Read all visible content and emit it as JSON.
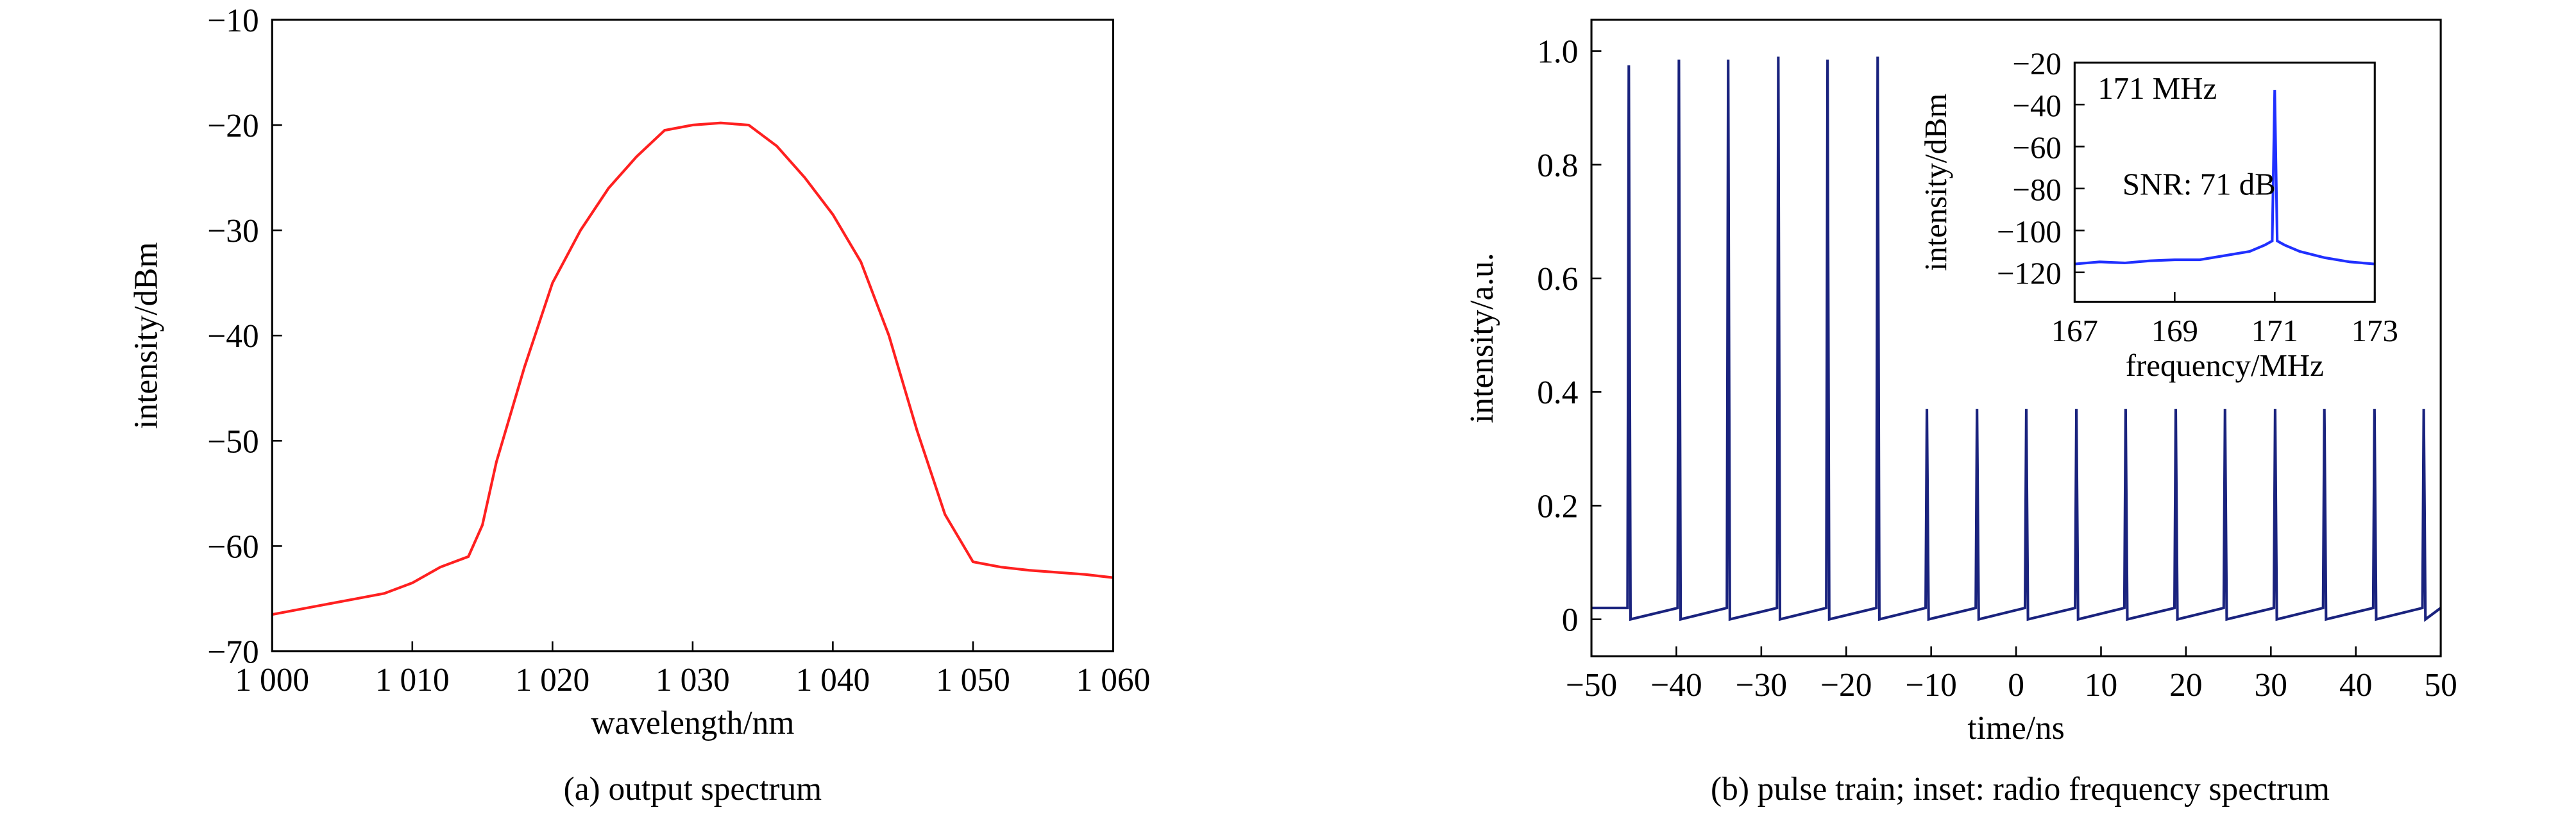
{
  "chart_data": [
    {
      "type": "line",
      "caption": "(a) output spectrum",
      "xlabel": "wavelength/nm",
      "ylabel": "intensity/dBm",
      "color": "#ff2020",
      "x": [
        1000,
        1002,
        1004,
        1006,
        1008,
        1010,
        1012,
        1014,
        1015,
        1016,
        1018,
        1020,
        1022,
        1024,
        1026,
        1028,
        1030,
        1032,
        1034,
        1036,
        1038,
        1040,
        1042,
        1044,
        1046,
        1048,
        1050,
        1052,
        1054,
        1056,
        1058,
        1060
      ],
      "values": [
        -66.5,
        -66,
        -65.5,
        -65,
        -64.5,
        -63.5,
        -62,
        -61,
        -58,
        -52,
        -43,
        -35,
        -30,
        -26,
        -23,
        -20.5,
        -20,
        -19.8,
        -20,
        -22,
        -25,
        -28.5,
        -33,
        -40,
        -49,
        -57,
        -61.5,
        -62,
        -62.3,
        -62.5,
        -62.7,
        -63
      ],
      "xlim": [
        1000,
        1060
      ],
      "xticks": [
        {
          "value": 1000,
          "label": "1 000"
        },
        {
          "value": 1010,
          "label": "1 010"
        },
        {
          "value": 1020,
          "label": "1 020"
        },
        {
          "value": 1030,
          "label": "1 030"
        },
        {
          "value": 1040,
          "label": "1 040"
        },
        {
          "value": 1050,
          "label": "1 050"
        },
        {
          "value": 1060,
          "label": "1 060"
        }
      ],
      "ylim": [
        -70,
        -10
      ],
      "yticks": [
        {
          "value": -70,
          "label": "−70"
        },
        {
          "value": -60,
          "label": "−60"
        },
        {
          "value": -50,
          "label": "−50"
        },
        {
          "value": -40,
          "label": "−40"
        },
        {
          "value": -30,
          "label": "−30"
        },
        {
          "value": -20,
          "label": "−20"
        },
        {
          "value": -10,
          "label": "−10"
        }
      ]
    },
    {
      "type": "line",
      "caption": "(b) pulse train; inset: radio frequency spectrum",
      "xlabel": "time/ns",
      "ylabel": "intensity/a.u.",
      "color": "#1a237e",
      "x": [
        -50,
        -45.75,
        -45.6,
        -45.4,
        -39.85,
        -39.7,
        -39.5,
        -34.05,
        -33.9,
        -33.7,
        -28.15,
        -28.0,
        -27.8,
        -22.35,
        -22.2,
        -22.0,
        -16.45,
        -16.3,
        -16.1,
        -10.65,
        -10.5,
        -10.3,
        -4.75,
        -4.6,
        -4.4,
        1.05,
        1.2,
        1.4,
        6.95,
        7.1,
        7.3,
        12.75,
        12.9,
        13.1,
        18.65,
        18.8,
        19.0,
        24.45,
        24.6,
        24.8,
        30.35,
        30.5,
        30.7,
        36.15,
        36.3,
        36.5,
        42.05,
        42.2,
        42.4,
        47.85,
        48.0,
        48.2,
        50
      ],
      "values": [
        0.02,
        0.02,
        0.975,
        0,
        0.02,
        0.985,
        0,
        0.02,
        0.985,
        0,
        0.02,
        0.99,
        0,
        0.02,
        0.985,
        0,
        0.02,
        0.99,
        0,
        0.02,
        0.37,
        0,
        0.02,
        0.37,
        0,
        0.02,
        0.37,
        0,
        0.02,
        0.37,
        0,
        0.02,
        0.37,
        0,
        0.02,
        0.37,
        0,
        0.02,
        0.37,
        0,
        0.02,
        0.37,
        0,
        0.02,
        0.37,
        0,
        0.02,
        0.37,
        0,
        0.02,
        0.37,
        0,
        0.02
      ],
      "xlim": [
        -50,
        50
      ],
      "xticks": [
        {
          "value": -50,
          "label": "−50"
        },
        {
          "value": -40,
          "label": "−40"
        },
        {
          "value": -30,
          "label": "−30"
        },
        {
          "value": -20,
          "label": "−20"
        },
        {
          "value": -10,
          "label": "−10"
        },
        0,
        10,
        20,
        30,
        40,
        50
      ],
      "ylim": [
        -0.065,
        1.055
      ],
      "yticks": [
        0,
        0.2,
        0.4,
        0.6,
        0.8,
        {
          "value": 1.0,
          "label": "1.0"
        }
      ]
    },
    {
      "type": "line",
      "xlabel": "frequency/MHz",
      "ylabel": "intensity/dBm",
      "color": "#2030ff",
      "annotations": [
        "171 MHz",
        "SNR: 71 dB"
      ],
      "x": [
        167,
        167.5,
        168,
        168.5,
        169,
        169.5,
        170,
        170.5,
        170.8,
        170.95,
        171,
        171.05,
        171.2,
        171.5,
        172,
        172.5,
        173
      ],
      "values": [
        -116,
        -115,
        -115.5,
        -114.5,
        -114,
        -114,
        -112,
        -110,
        -107,
        -105,
        -33,
        -105,
        -107,
        -110,
        -113,
        -115,
        -116
      ],
      "xlim": [
        167,
        173
      ],
      "xticks": [
        167,
        169,
        171,
        173
      ],
      "ylim": [
        -134,
        -20
      ],
      "yticks": [
        {
          "value": -120,
          "label": "−120"
        },
        {
          "value": -100,
          "label": "−100"
        },
        {
          "value": -80,
          "label": "−80"
        },
        {
          "value": -60,
          "label": "−60"
        },
        {
          "value": -40,
          "label": "−40"
        },
        {
          "value": -20,
          "label": "−20"
        }
      ]
    }
  ]
}
